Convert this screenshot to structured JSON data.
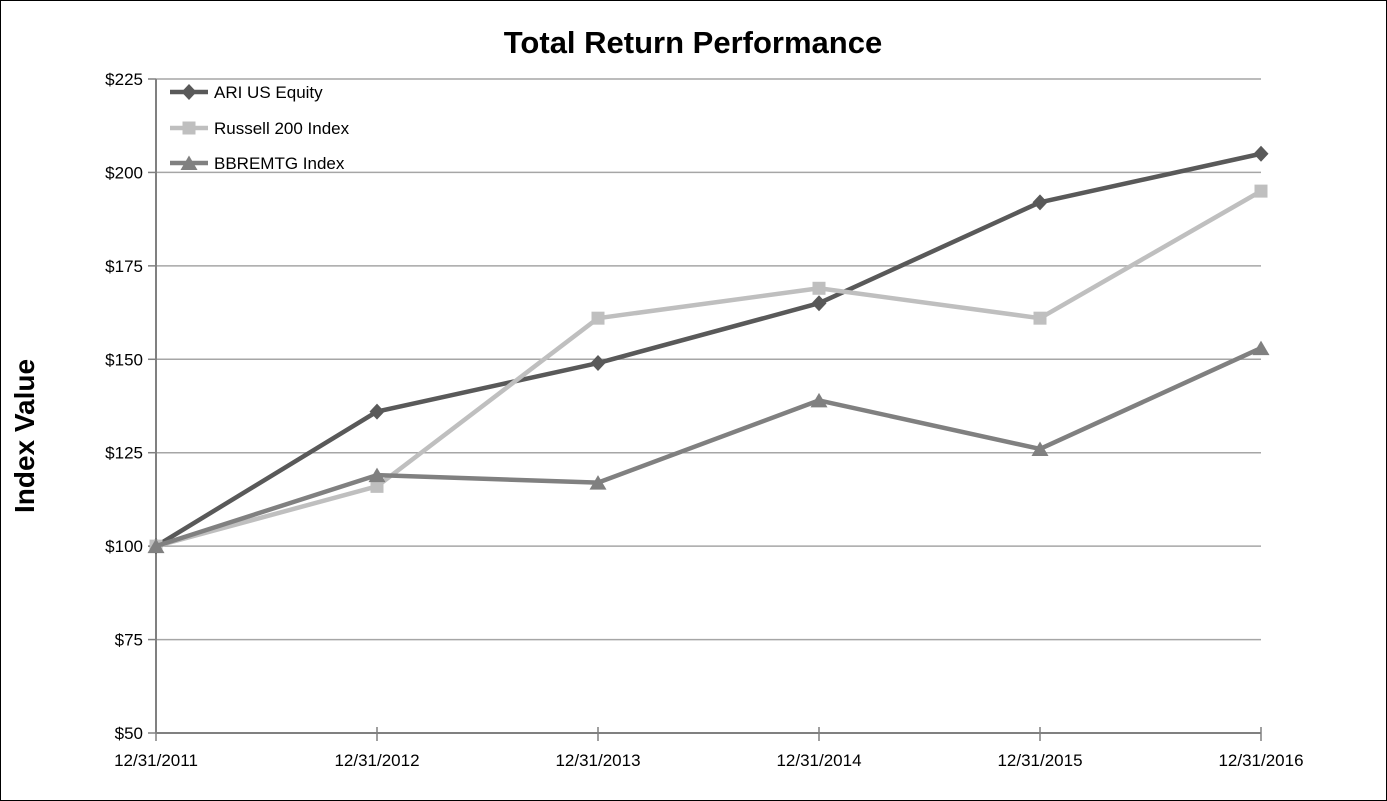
{
  "chart_data": {
    "type": "line",
    "title": "Total Return Performance",
    "ylabel": "Index Value",
    "xlabel": "",
    "categories": [
      "12/31/2011",
      "12/31/2012",
      "12/31/2013",
      "12/31/2014",
      "12/31/2015",
      "12/31/2016"
    ],
    "series": [
      {
        "name": "ARI US Equity",
        "marker": "diamond",
        "color": "#595959",
        "values": [
          100,
          136,
          149,
          165,
          192,
          205
        ]
      },
      {
        "name": "Russell 200 Index",
        "marker": "square",
        "color": "#bfbfbf",
        "values": [
          100,
          116,
          161,
          169,
          161,
          195
        ]
      },
      {
        "name": "BBREMTG Index",
        "marker": "triangle",
        "color": "#808080",
        "values": [
          100,
          119,
          117,
          139,
          126,
          153
        ]
      }
    ],
    "ylim": [
      50,
      225
    ],
    "ytick_step": 25,
    "ytick_prefix": "$",
    "grid": "horizontal-only",
    "legend_position": "top-left-inside",
    "colors": {
      "axis": "#808080",
      "gridline": "#a6a6a6",
      "text": "#000000",
      "background": "#ffffff",
      "border": "#000000"
    }
  }
}
